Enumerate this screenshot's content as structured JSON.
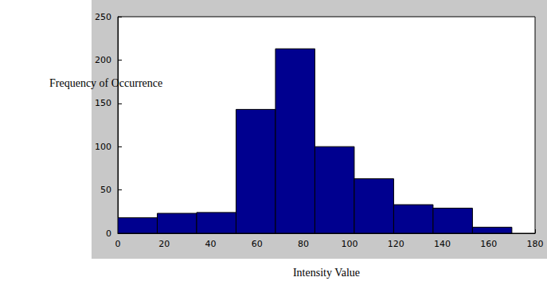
{
  "chart_data": {
    "type": "histogram",
    "xlabel": "Intensity Value",
    "ylabel": "Frequency of Occurrence",
    "bins": [
      0,
      17,
      34,
      51,
      68,
      85,
      102,
      119,
      136,
      153,
      170
    ],
    "counts": [
      18,
      23,
      24,
      143,
      213,
      100,
      63,
      33,
      29,
      7
    ],
    "color": "#00008f",
    "xlim": [
      0,
      180
    ],
    "xticks": [
      0,
      20,
      40,
      60,
      80,
      100,
      120,
      140,
      160,
      180
    ],
    "ylim": [
      0,
      250
    ],
    "yticks": [
      0,
      50,
      100,
      150,
      200,
      250
    ],
    "grid": false
  }
}
